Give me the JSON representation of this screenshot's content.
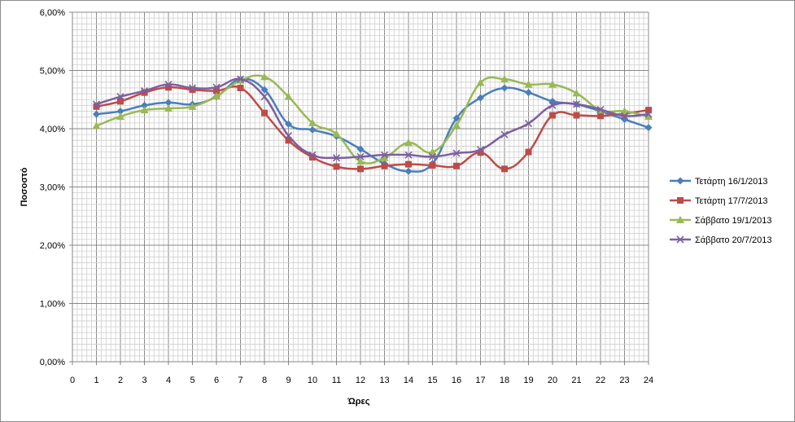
{
  "chart_data": {
    "type": "line",
    "title": "",
    "xlabel": "Ώρες",
    "ylabel": "Ποσοστό",
    "x": [
      1,
      2,
      3,
      4,
      5,
      6,
      7,
      8,
      9,
      10,
      11,
      12,
      13,
      14,
      15,
      16,
      17,
      18,
      19,
      20,
      21,
      22,
      23,
      24
    ],
    "xlim": [
      0,
      24
    ],
    "xticks": [
      "0",
      "1",
      "2",
      "3",
      "4",
      "5",
      "6",
      "7",
      "8",
      "9",
      "10",
      "11",
      "12",
      "13",
      "14",
      "15",
      "16",
      "17",
      "18",
      "19",
      "20",
      "21",
      "22",
      "23",
      "24"
    ],
    "ylim": [
      0,
      6
    ],
    "yticks": [
      "0,00%",
      "1,00%",
      "2,00%",
      "3,00%",
      "4,00%",
      "5,00%",
      "6,00%"
    ],
    "grid": true,
    "legend_position": "right",
    "smooth": true,
    "series": [
      {
        "name": "Τετάρτη 16/1/2013",
        "color": "#4a7ebb",
        "marker": "diamond",
        "values": [
          4.25,
          4.3,
          4.4,
          4.45,
          4.42,
          4.55,
          4.85,
          4.67,
          4.08,
          3.98,
          3.87,
          3.65,
          3.4,
          3.27,
          3.4,
          4.18,
          4.53,
          4.7,
          4.62,
          4.47,
          4.42,
          4.3,
          4.16,
          4.02
        ]
      },
      {
        "name": "Τετάρτη 17/7/2013",
        "color": "#be4b48",
        "marker": "square",
        "values": [
          4.38,
          4.47,
          4.62,
          4.71,
          4.67,
          4.65,
          4.7,
          4.27,
          3.8,
          3.51,
          3.35,
          3.31,
          3.36,
          3.39,
          3.37,
          3.36,
          3.59,
          3.31,
          3.6,
          4.23,
          4.23,
          4.22,
          4.26,
          4.32
        ]
      },
      {
        "name": "Σάββατο 19/1/2013",
        "color": "#98b954",
        "marker": "triangle",
        "values": [
          4.05,
          4.21,
          4.32,
          4.35,
          4.38,
          4.56,
          4.83,
          4.89,
          4.55,
          4.1,
          3.91,
          3.44,
          3.5,
          3.76,
          3.6,
          4.06,
          4.79,
          4.85,
          4.76,
          4.76,
          4.61,
          4.32,
          4.3,
          4.21
        ]
      },
      {
        "name": "Σάββατο 20/7/2013",
        "color": "#7d5fa0",
        "marker": "x",
        "values": [
          4.42,
          4.55,
          4.65,
          4.76,
          4.7,
          4.71,
          4.85,
          4.55,
          3.88,
          3.55,
          3.5,
          3.52,
          3.55,
          3.55,
          3.52,
          3.58,
          3.64,
          3.9,
          4.09,
          4.4,
          4.42,
          4.33,
          4.22,
          4.25
        ]
      }
    ]
  }
}
